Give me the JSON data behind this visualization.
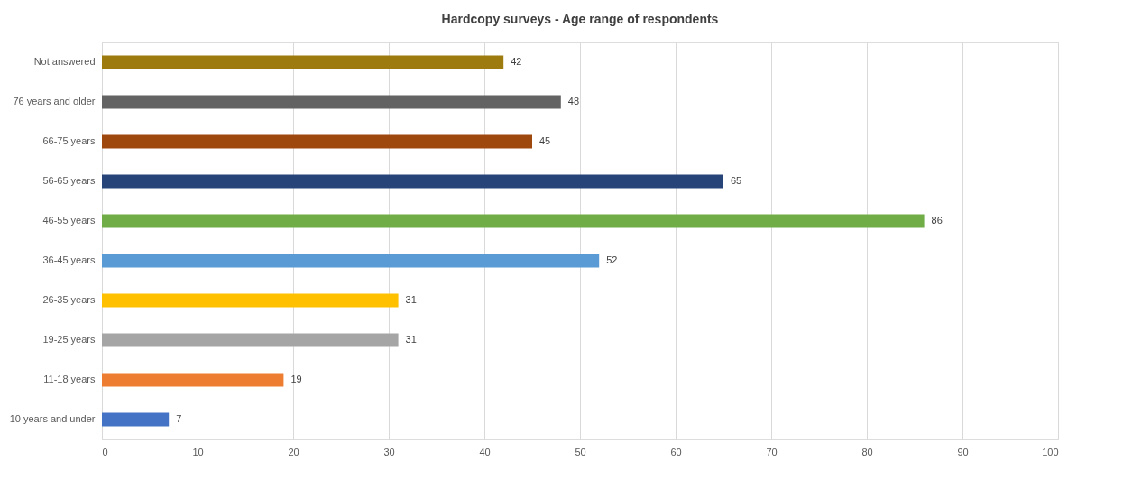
{
  "chart_data": {
    "type": "bar",
    "orientation": "horizontal",
    "title": "Hardcopy surveys - Age range of respondents",
    "categories": [
      "Not answered",
      "76 years and older",
      "66-75 years",
      "56-65 years",
      "46-55 years",
      "36-45 years",
      "26-35 years",
      "19-25 years",
      "11-18 years",
      "10 years and under"
    ],
    "values": [
      42,
      48,
      45,
      65,
      86,
      52,
      31,
      31,
      19,
      7
    ],
    "colors": [
      "#9e7b0f",
      "#636363",
      "#9e480e",
      "#264478",
      "#70ad47",
      "#5b9bd5",
      "#ffc000",
      "#a5a5a5",
      "#ed7d31",
      "#4472c4"
    ],
    "xlim": [
      0,
      100
    ],
    "xticks": [
      0,
      10,
      20,
      30,
      40,
      50,
      60,
      70,
      80,
      90,
      100
    ],
    "grid": "x",
    "data_labels": true
  }
}
